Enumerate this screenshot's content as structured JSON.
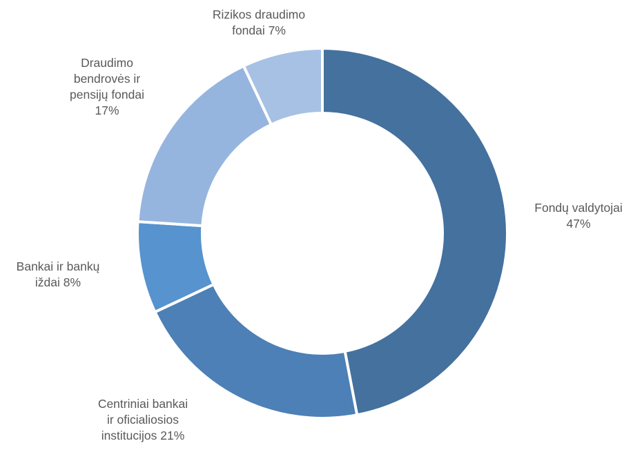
{
  "chart_data": {
    "type": "pie",
    "variant": "donut",
    "title": "",
    "legend": "none",
    "slices": [
      {
        "name": "Fondų valdytojai",
        "value": 47,
        "color": "#44719E",
        "label_lines": [
          "Fondų valdytojai",
          "47%"
        ]
      },
      {
        "name": "Centriniai bankai ir oficialiosios institucijos",
        "value": 21,
        "color": "#4C80B6",
        "label_lines": [
          "Centriniai bankai",
          "ir oficialiosios",
          "institucijos 21%"
        ]
      },
      {
        "name": "Bankai ir bankų iždai",
        "value": 8,
        "color": "#5793CE",
        "label_lines": [
          "Bankai ir bankų",
          "iždai 8%"
        ]
      },
      {
        "name": "Draudimo bendrovės ir pensijų fondai",
        "value": 17,
        "color": "#96B5DE",
        "label_lines": [
          "Draudimo",
          "bendrovės ir",
          "pensijų fondai",
          "17%"
        ]
      },
      {
        "name": "Rizikos draudimo fondai",
        "value": 7,
        "color": "#A7C1E4",
        "label_lines": [
          "Rizikos draudimo",
          "fondai 7%"
        ]
      }
    ]
  }
}
